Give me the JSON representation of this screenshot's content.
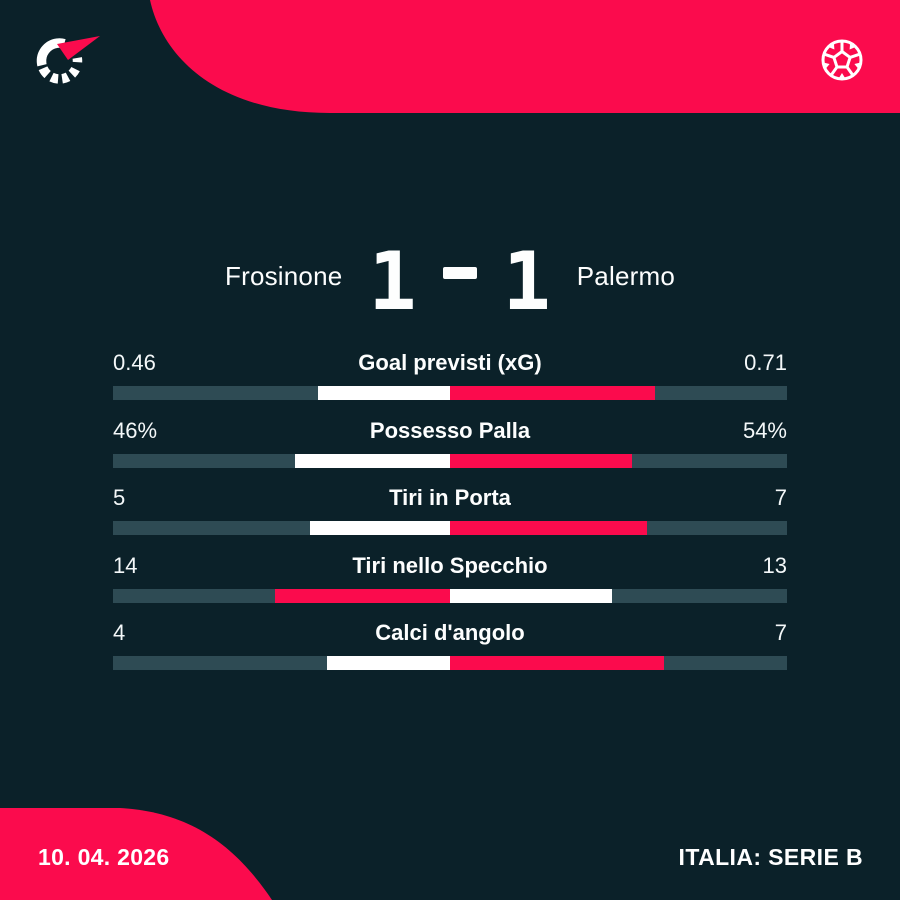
{
  "theme": {
    "background_color": "#0b2129",
    "accent_red": "#fb0b4d",
    "bar_track_color": "#2e4b54",
    "bar_loser_color": "#ffffff",
    "text_color": "#ffffff"
  },
  "header": {
    "logo_icon": "flashscore-logo",
    "sport_icon": "football-ball-icon"
  },
  "scoreboard": {
    "home_team": "Frosinone",
    "away_team": "Palermo",
    "home_score": "1",
    "away_score": "1",
    "separator": "-"
  },
  "stats": {
    "rows": [
      {
        "label": "Goal previsti (xG)",
        "home_value": "0.46",
        "away_value": "0.71",
        "home_num": 0.46,
        "away_num": 0.71,
        "winner": "away"
      },
      {
        "label": "Possesso Palla",
        "home_value": "46%",
        "away_value": "54%",
        "home_num": 46,
        "away_num": 54,
        "winner": "away"
      },
      {
        "label": "Tiri in Porta",
        "home_value": "5",
        "away_value": "7",
        "home_num": 5,
        "away_num": 7,
        "winner": "away"
      },
      {
        "label": "Tiri nello Specchio",
        "home_value": "14",
        "away_value": "13",
        "home_num": 14,
        "away_num": 13,
        "winner": "home"
      },
      {
        "label": "Calci d'angolo",
        "home_value": "4",
        "away_value": "7",
        "home_num": 4,
        "away_num": 7,
        "winner": "away"
      }
    ]
  },
  "footer": {
    "date": "10. 04. 2026",
    "competition": "ITALIA: SERIE B"
  },
  "chart_data": {
    "type": "bar",
    "orientation": "horizontal-paired",
    "title": "Frosinone 1 - 1 Palermo",
    "categories": [
      "Goal previsti (xG)",
      "Possesso Palla",
      "Tiri in Porta",
      "Tiri nello Specchio",
      "Calci d'angolo"
    ],
    "series": [
      {
        "name": "Frosinone",
        "values": [
          0.46,
          46,
          5,
          14,
          4
        ]
      },
      {
        "name": "Palermo",
        "values": [
          0.71,
          54,
          7,
          13,
          7
        ]
      }
    ],
    "legend_position": "none",
    "grid": false,
    "note": "each bar splits at center; segment widths proportional to value ratio; higher value highlighted red, lower white"
  }
}
